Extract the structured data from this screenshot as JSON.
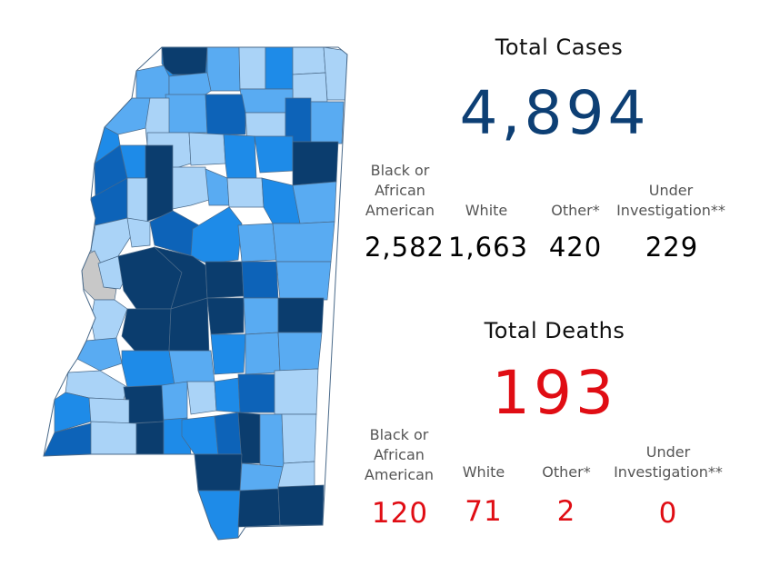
{
  "cases": {
    "title": "Total Cases",
    "total": "4,894",
    "breakdown": [
      {
        "label": "Black or African American",
        "value": "2,582"
      },
      {
        "label": "White",
        "value": "1,663"
      },
      {
        "label": "Other*",
        "value": "420"
      },
      {
        "label": "Under Investigation**",
        "value": "229"
      }
    ]
  },
  "deaths": {
    "title": "Total Deaths",
    "total": "193",
    "breakdown": [
      {
        "label": "Black or African American",
        "value": "120"
      },
      {
        "label": "White",
        "value": "71"
      },
      {
        "label": "Other*",
        "value": "2"
      },
      {
        "label": "Under Investigation**",
        "value": "0"
      }
    ]
  },
  "map": {
    "palette": {
      "lightest": "#aad3f7",
      "light": "#59abf2",
      "bright": "#1e8be8",
      "medium": "#0d63b8",
      "dark": "#0b3d6e",
      "no_data": "#c8c8c8",
      "border": "#4a6a8a"
    }
  }
}
